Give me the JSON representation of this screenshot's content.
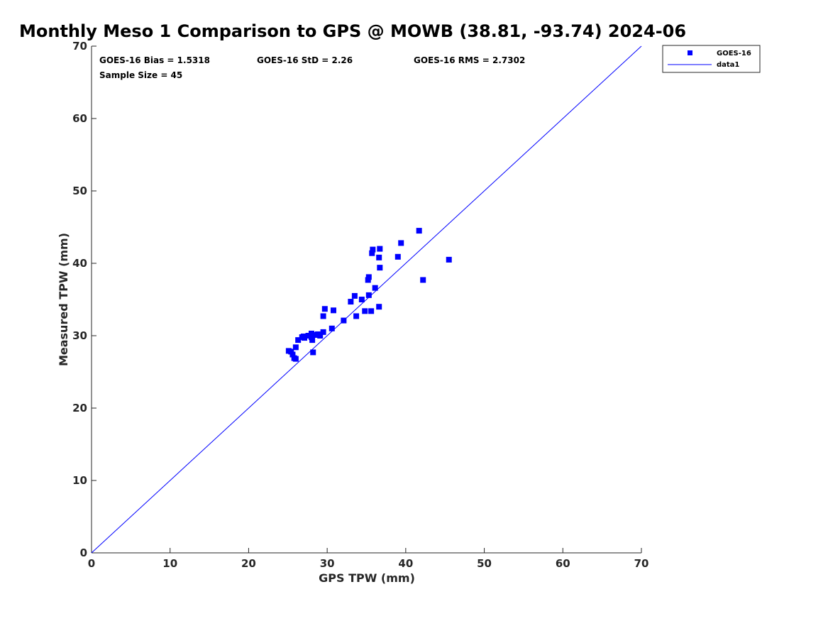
{
  "chart_data": {
    "type": "scatter",
    "title": "Monthly Meso 1 Comparison to GPS @ MOWB (38.81, -93.74) 2024-06",
    "xlabel": "GPS TPW (mm)",
    "ylabel": "Measured TPW (mm)",
    "xlim": [
      0,
      70
    ],
    "ylim": [
      0,
      70
    ],
    "xticks": [
      0,
      10,
      20,
      30,
      40,
      50,
      60,
      70
    ],
    "yticks": [
      0,
      10,
      20,
      30,
      40,
      50,
      60,
      70
    ],
    "grid": false,
    "legend_position": "outside-top-right",
    "annotations": {
      "bias": "GOES-16 Bias = 1.5318",
      "std": "GOES-16 StD = 2.26",
      "rms": "GOES-16 RMS = 2.7302",
      "sample_size": "Sample Size = 45"
    },
    "series": [
      {
        "name": "GOES-16",
        "kind": "scatter",
        "marker": "square",
        "color": "#0000ff",
        "points": [
          [
            25.1,
            27.9
          ],
          [
            25.6,
            27.4
          ],
          [
            25.8,
            26.9
          ],
          [
            26.0,
            26.8
          ],
          [
            26.0,
            28.4
          ],
          [
            26.3,
            29.4
          ],
          [
            26.8,
            29.8
          ],
          [
            27.1,
            29.7
          ],
          [
            27.6,
            30.0
          ],
          [
            28.0,
            30.3
          ],
          [
            28.1,
            29.4
          ],
          [
            28.2,
            27.7
          ],
          [
            28.4,
            30.1
          ],
          [
            28.8,
            30.2
          ],
          [
            29.1,
            30.0
          ],
          [
            29.5,
            30.5
          ],
          [
            29.5,
            32.7
          ],
          [
            29.7,
            33.7
          ],
          [
            30.6,
            31.0
          ],
          [
            30.8,
            33.5
          ],
          [
            32.1,
            32.1
          ],
          [
            33.0,
            34.7
          ],
          [
            33.5,
            35.5
          ],
          [
            33.7,
            32.7
          ],
          [
            34.4,
            35.0
          ],
          [
            34.8,
            33.4
          ],
          [
            35.2,
            37.7
          ],
          [
            35.3,
            38.1
          ],
          [
            35.3,
            35.6
          ],
          [
            35.6,
            33.4
          ],
          [
            35.7,
            41.4
          ],
          [
            35.8,
            41.9
          ],
          [
            36.1,
            36.6
          ],
          [
            36.6,
            40.8
          ],
          [
            36.6,
            34.0
          ],
          [
            36.7,
            42.0
          ],
          [
            36.7,
            39.4
          ],
          [
            39.0,
            40.9
          ],
          [
            39.4,
            42.8
          ],
          [
            41.7,
            44.5
          ],
          [
            42.2,
            37.7
          ],
          [
            45.5,
            40.5
          ],
          [
            28.0,
            29.8
          ],
          [
            27.0,
            29.9
          ],
          [
            25.4,
            27.8
          ]
        ]
      },
      {
        "name": "data1",
        "kind": "line",
        "color": "#0000ff",
        "x": [
          0,
          70
        ],
        "y": [
          0,
          70
        ]
      }
    ]
  }
}
